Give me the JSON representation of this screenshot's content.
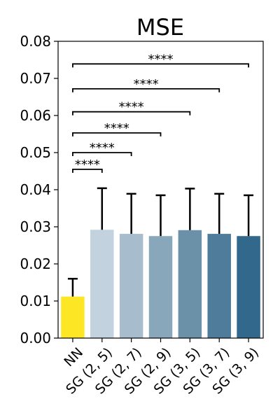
{
  "chart_data": {
    "type": "bar",
    "title": "MSE",
    "xlabel": "",
    "ylabel": "",
    "ylim": [
      0,
      0.08
    ],
    "yticks": [
      "0.00",
      "0.01",
      "0.02",
      "0.03",
      "0.04",
      "0.05",
      "0.06",
      "0.07",
      "0.08"
    ],
    "categories": [
      "NN",
      "SG (2, 5)",
      "SG (2, 7)",
      "SG (2, 9)",
      "SG (3, 5)",
      "SG (3, 7)",
      "SG (3, 9)"
    ],
    "values": [
      0.0112,
      0.0292,
      0.0281,
      0.0275,
      0.0291,
      0.0281,
      0.0275
    ],
    "errors": [
      0.0048,
      0.0112,
      0.0108,
      0.011,
      0.0112,
      0.0108,
      0.011
    ],
    "colors": [
      "#fde724",
      "#c2d3df",
      "#a7bccc",
      "#89a7ba",
      "#6b91a9",
      "#4f7c9a",
      "#31688c"
    ],
    "grid": false,
    "significance": [
      {
        "from": 0,
        "to": 1,
        "label": "****",
        "y": 0.0455
      },
      {
        "from": 0,
        "to": 2,
        "label": "****",
        "y": 0.05
      },
      {
        "from": 0,
        "to": 3,
        "label": "****",
        "y": 0.0553
      },
      {
        "from": 0,
        "to": 4,
        "label": "****",
        "y": 0.061
      },
      {
        "from": 0,
        "to": 5,
        "label": "****",
        "y": 0.0672
      },
      {
        "from": 0,
        "to": 6,
        "label": "****",
        "y": 0.0739
      }
    ]
  }
}
